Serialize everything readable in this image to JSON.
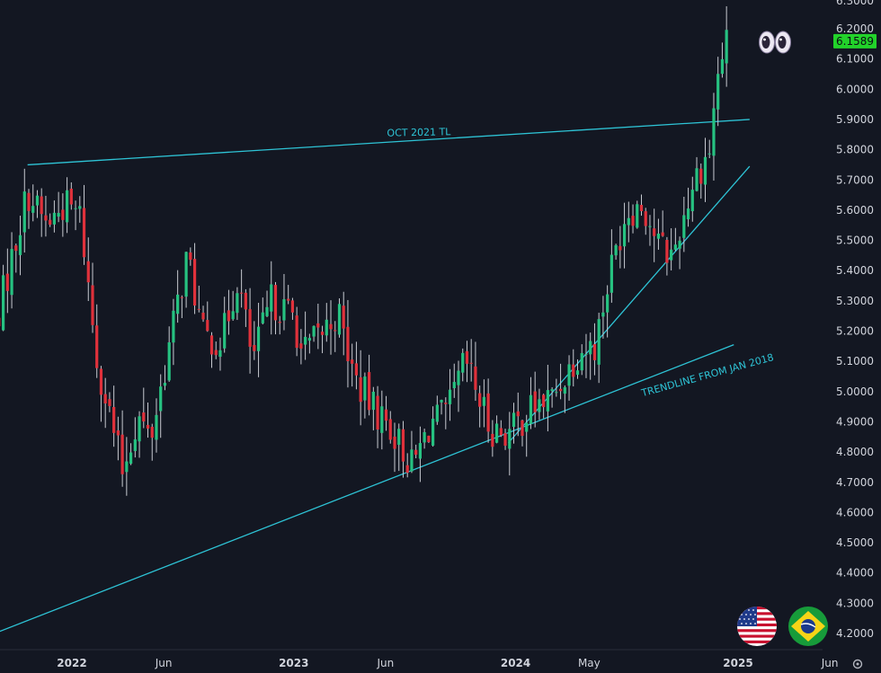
{
  "chart_data": {
    "type": "candlestick",
    "instrument_pair_flags": [
      "us-flag-icon",
      "brazil-flag-icon"
    ],
    "last_price": 6.1589,
    "last_price_label": "6.1589",
    "ylim": [
      4.15,
      6.25
    ],
    "y_ticks": [
      "6.2000",
      "6.1000",
      "6.0000",
      "5.9000",
      "5.8000",
      "5.7000",
      "5.6000",
      "5.5000",
      "5.4000",
      "5.3000",
      "5.2000",
      "5.1000",
      "5.0000",
      "4.9000",
      "4.8000",
      "4.7000",
      "4.6000",
      "4.5000",
      "4.4000",
      "4.3000",
      "4.2000"
    ],
    "x_ticks": [
      {
        "label": "2022",
        "date": "2022-01-01"
      },
      {
        "label": "Jun",
        "date": "2022-06-01"
      },
      {
        "label": "2023",
        "date": "2023-01-01"
      },
      {
        "label": "Jun",
        "date": "2023-06-01"
      },
      {
        "label": "2024",
        "date": "2024-01-01"
      },
      {
        "label": "May",
        "date": "2024-05-01"
      },
      {
        "label": "2025",
        "date": "2025-01-01"
      },
      {
        "label": "Jun",
        "date": "2025-06-01"
      }
    ],
    "colors": {
      "up": "#26c281",
      "down": "#e0313b",
      "trendline": "#2ec4d6",
      "badge": "#22d32a"
    },
    "trendlines": [
      {
        "label": "OCT 2021 TL",
        "start": {
          "date": "2021-10-20",
          "price": 5.75
        },
        "end": {
          "date": "2025-01-20",
          "price": 5.9
        }
      },
      {
        "label": "TRENDLINE FROM JAN 2018",
        "start": {
          "date": "2021-08-01",
          "price": 4.18
        },
        "end": {
          "date": "2024-12-25",
          "price": 5.155
        }
      },
      {
        "label": "",
        "start": {
          "date": "2023-12-20",
          "price": 4.83
        },
        "end": {
          "date": "2025-01-20",
          "price": 5.745
        }
      }
    ],
    "anchors": [
      {
        "date": "2021-08-20",
        "price": 5.15
      },
      {
        "date": "2021-10-20",
        "price": 5.66
      },
      {
        "date": "2021-11-20",
        "price": 5.55
      },
      {
        "date": "2021-12-20",
        "price": 5.62
      },
      {
        "date": "2022-01-15",
        "price": 5.58
      },
      {
        "date": "2022-02-10",
        "price": 5.12
      },
      {
        "date": "2022-03-25",
        "price": 4.74
      },
      {
        "date": "2022-04-20",
        "price": 4.92
      },
      {
        "date": "2022-05-10",
        "price": 4.84
      },
      {
        "date": "2022-06-25",
        "price": 5.3
      },
      {
        "date": "2022-07-10",
        "price": 5.45
      },
      {
        "date": "2022-08-05",
        "price": 5.18
      },
      {
        "date": "2022-09-05",
        "price": 5.17
      },
      {
        "date": "2022-10-01",
        "price": 5.38
      },
      {
        "date": "2022-10-25",
        "price": 5.1
      },
      {
        "date": "2022-11-25",
        "price": 5.3
      },
      {
        "date": "2023-01-01",
        "price": 5.25
      },
      {
        "date": "2023-01-15",
        "price": 5.12
      },
      {
        "date": "2023-03-15",
        "price": 5.26
      },
      {
        "date": "2023-04-10",
        "price": 5.05
      },
      {
        "date": "2023-05-10",
        "price": 4.95
      },
      {
        "date": "2023-06-10",
        "price": 4.88
      },
      {
        "date": "2023-07-15",
        "price": 4.75
      },
      {
        "date": "2023-08-15",
        "price": 4.9
      },
      {
        "date": "2023-09-10",
        "price": 4.92
      },
      {
        "date": "2023-10-10",
        "price": 5.1
      },
      {
        "date": "2023-10-25",
        "price": 5.02
      },
      {
        "date": "2023-11-20",
        "price": 4.88
      },
      {
        "date": "2023-12-20",
        "price": 4.86
      },
      {
        "date": "2024-01-30",
        "price": 4.95
      },
      {
        "date": "2024-03-01",
        "price": 4.98
      },
      {
        "date": "2024-04-15",
        "price": 5.14
      },
      {
        "date": "2024-05-10",
        "price": 5.15
      },
      {
        "date": "2024-06-05",
        "price": 5.4
      },
      {
        "date": "2024-07-01",
        "price": 5.6
      },
      {
        "date": "2024-07-28",
        "price": 5.62
      },
      {
        "date": "2024-08-25",
        "price": 5.48
      },
      {
        "date": "2024-09-15",
        "price": 5.45
      },
      {
        "date": "2024-10-20",
        "price": 5.7
      },
      {
        "date": "2024-11-15",
        "price": 5.8
      },
      {
        "date": "2024-11-25",
        "price": 5.98
      },
      {
        "date": "2024-12-01",
        "price": 6.08
      },
      {
        "date": "2024-12-14",
        "price": 6.16
      }
    ]
  },
  "toolbar": {
    "settings_icon": "gear-icon"
  }
}
